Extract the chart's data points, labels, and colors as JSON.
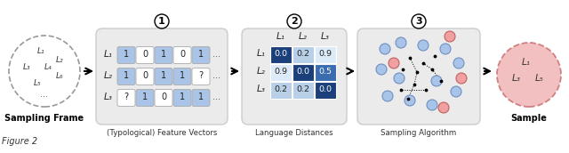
{
  "bg_color": "#ffffff",
  "sampling_frame_label": "Sampling Frame",
  "sampling_frame_langs": [
    "L₁",
    "L₂",
    "L₃",
    "L₄",
    "L₅",
    "L₆"
  ],
  "fv_label": "(Typological) Feature Vectors",
  "fv_rows": [
    "L₁",
    "L₂",
    "L₃"
  ],
  "fv_data": [
    [
      "1",
      "0",
      "1",
      "0",
      "1"
    ],
    [
      "1",
      "0",
      "1",
      "1",
      "?"
    ],
    [
      "?",
      "1",
      "0",
      "1",
      "1"
    ]
  ],
  "fv_colored": [
    [
      true,
      false,
      true,
      false,
      true
    ],
    [
      true,
      false,
      true,
      true,
      false
    ],
    [
      false,
      true,
      false,
      true,
      true
    ]
  ],
  "fv_blue": "#aac4e8",
  "fv_white": "#ffffff",
  "fv_box_bg": "#ebebeb",
  "ld_label": "Language Distances",
  "ld_cols": [
    "L₁",
    "L₂",
    "L₃"
  ],
  "ld_rows": [
    "L₁",
    "L₂",
    "L₃"
  ],
  "ld_data": [
    [
      "0.0",
      "0.2",
      "0.9"
    ],
    [
      "0.9",
      "0.0",
      "0.5"
    ],
    [
      "0.2",
      "0.2",
      "0.0"
    ]
  ],
  "ld_colors": [
    [
      "#1a3f7a",
      "#b8cfe8",
      "#ddeaf8"
    ],
    [
      "#ddeaf8",
      "#1a3f7a",
      "#3a6cb0"
    ],
    [
      "#b8cfe8",
      "#b8cfe8",
      "#1a3f7a"
    ]
  ],
  "ld_text_colors": [
    [
      "#ffffff",
      "#222222",
      "#222222"
    ],
    [
      "#222222",
      "#ffffff",
      "#ffffff"
    ],
    [
      "#222222",
      "#222222",
      "#ffffff"
    ]
  ],
  "ld_box_bg": "#ebebeb",
  "sa_label": "Sampling Algorithm",
  "sa_box_bg": "#ebebeb",
  "sample_label": "Sample",
  "sample_langs": [
    "L₁",
    "L₃",
    "L₅"
  ],
  "sample_fill": "#f2c0c0",
  "sample_border": "#d08080",
  "figure_label": "Figure 2"
}
